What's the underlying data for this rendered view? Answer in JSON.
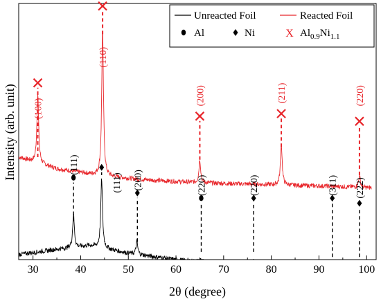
{
  "chart_data": {
    "type": "line",
    "xlabel": "2θ (degree)",
    "ylabel": "Intensity (arb. unit)",
    "xlim": [
      27,
      102
    ],
    "x_ticks": [
      30,
      40,
      50,
      60,
      70,
      80,
      90,
      100
    ],
    "y_ticks_labeled": false,
    "grid": false,
    "legend": {
      "position": "top-right",
      "entries": [
        {
          "label": "Unreacted Foil",
          "kind": "line",
          "color": "#000000"
        },
        {
          "label": "Reacted Foil",
          "kind": "line",
          "color": "#e8262b"
        },
        {
          "label": "Al",
          "kind": "marker",
          "marker": "circle",
          "color": "#000000"
        },
        {
          "label": "Ni",
          "kind": "marker",
          "marker": "diamond",
          "color": "#000000"
        },
        {
          "label": "Al0.9Ni1.1",
          "label_base": "Al",
          "label_sub1": "0.9",
          "label_mid": "Ni",
          "label_sub2": "1.1",
          "kind": "marker",
          "marker": "cross",
          "color": "#e8262b"
        }
      ]
    },
    "series": [
      {
        "name": "Reacted Foil",
        "color": "#e8262b",
        "baseline": [
          [
            27,
            0.4
          ],
          [
            35,
            0.355
          ],
          [
            45,
            0.325
          ],
          [
            55,
            0.31
          ],
          [
            65,
            0.3
          ],
          [
            75,
            0.295
          ],
          [
            85,
            0.29
          ],
          [
            95,
            0.285
          ],
          [
            101,
            0.28
          ]
        ],
        "peaks": [
          {
            "x": 31.0,
            "height": 0.27
          },
          {
            "x": 44.6,
            "height": 0.57
          },
          {
            "x": 65.0,
            "height": 0.09
          },
          {
            "x": 82.1,
            "height": 0.16
          },
          {
            "x": 98.5,
            "height": 0.045
          }
        ]
      },
      {
        "name": "Unreacted Foil",
        "color": "#000000",
        "baseline": [
          [
            27,
            0.02
          ],
          [
            35,
            0.04
          ],
          [
            42,
            0.055
          ],
          [
            50,
            0.025
          ],
          [
            60,
            0.0
          ],
          [
            70,
            -0.015
          ],
          [
            80,
            -0.025
          ],
          [
            90,
            -0.035
          ],
          [
            101,
            -0.04
          ]
        ],
        "peaks": [
          {
            "x": 38.5,
            "height": 0.13
          },
          {
            "x": 44.4,
            "height": 0.27
          },
          {
            "x": 51.8,
            "height": 0.05
          },
          {
            "x": 65.2,
            "height": 0.01
          },
          {
            "x": 76.3,
            "height": 0.02
          },
          {
            "x": 92.8,
            "height": 0.007
          },
          {
            "x": 98.4,
            "height": 0.006
          }
        ]
      }
    ],
    "annotations": [
      {
        "x": 31.0,
        "label": "(100)",
        "marker": "cross",
        "color": "#e8262b",
        "y_bottom": 0.4,
        "y_marker": 0.69,
        "y_label": 0.59
      },
      {
        "x": 44.6,
        "label": "(110)",
        "marker": "cross",
        "color": "#e8262b",
        "y_bottom": 0.88,
        "y_marker": 0.99,
        "y_label": 0.79
      },
      {
        "x": 65.0,
        "label": "(200)",
        "marker": "cross",
        "color": "#e8262b",
        "y_bottom": 0.39,
        "y_marker": 0.56,
        "y_label": 0.64
      },
      {
        "x": 82.1,
        "label": "(211)",
        "marker": "cross",
        "color": "#e8262b",
        "y_bottom": 0.44,
        "y_marker": 0.57,
        "y_label": 0.65
      },
      {
        "x": 98.5,
        "label": "(220)",
        "marker": "cross",
        "color": "#e8262b",
        "y_bottom": 0.33,
        "y_marker": 0.54,
        "y_label": 0.64
      },
      {
        "x": 38.5,
        "label": "(111)",
        "marker": "circle",
        "color": "#000000",
        "y_bottom": 0.15,
        "y_marker": 0.32,
        "y_label": 0.37
      },
      {
        "x": 44.4,
        "label": "",
        "marker": "diamond",
        "color": "#000000",
        "y_bottom": 0.33,
        "y_marker": 0.36,
        "y_label": 0.0
      },
      {
        "x": 47.5,
        "label": "(111)",
        "marker": "none",
        "color": "#000000",
        "y_bottom": 0.0,
        "y_marker": 0.0,
        "y_label": 0.3
      },
      {
        "x": 51.9,
        "label": "(200)",
        "marker": "diamond",
        "color": "#000000",
        "y_bottom": 0.07,
        "y_marker": 0.26,
        "y_label": 0.31
      },
      {
        "x": 65.3,
        "label": "(220)",
        "marker": "circle",
        "color": "#000000",
        "y_bottom": 0.03,
        "y_marker": 0.24,
        "y_label": 0.29
      },
      {
        "x": 76.3,
        "label": "(220)",
        "marker": "diamond",
        "color": "#000000",
        "y_bottom": 0.03,
        "y_marker": 0.24,
        "y_label": 0.29
      },
      {
        "x": 92.8,
        "label": "(311)",
        "marker": "diamond",
        "color": "#000000",
        "y_bottom": 0.01,
        "y_marker": 0.24,
        "y_label": 0.29
      },
      {
        "x": 98.5,
        "label": "(222)",
        "marker": "diamond",
        "color": "#000000",
        "y_bottom": 0.01,
        "y_marker": 0.22,
        "y_label": 0.28
      }
    ]
  }
}
